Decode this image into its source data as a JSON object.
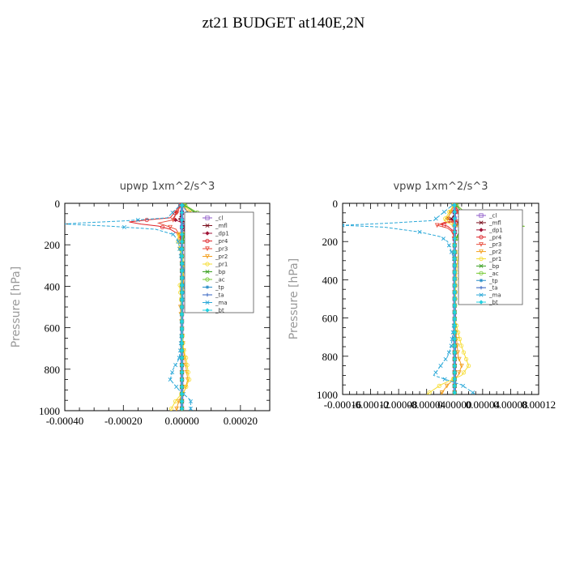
{
  "suptitle": "zt21  BUDGET at140E,2N",
  "colors": {
    "cl": "#8e59c9",
    "mfl": "#7a0f1e",
    "dp1": "#a01438",
    "pr4": "#e0252a",
    "pr3": "#e84a3a",
    "pr2": "#f4a020",
    "pr1": "#f6dc30",
    "bp": "#3aa020",
    "ac": "#74c830",
    "tp": "#2a8ec8",
    "ta": "#3060c0",
    "ma": "#2aa8d8",
    "bt": "#22d0e0"
  },
  "chart_data": [
    {
      "type": "line",
      "title": "upwp   1xm^2/s^3",
      "ylabel": "Pressure [hPa]",
      "xlabel": "",
      "xlim": [
        -0.0004,
        0.0003
      ],
      "ylim": [
        1000,
        0
      ],
      "xticks": [
        "-0.00040",
        "-0.00020",
        "0.00000",
        "0.00020"
      ],
      "xtick_values": [
        -0.0004,
        -0.0002,
        0,
        0.0002
      ],
      "yticks": [
        "0",
        "200",
        "400",
        "600",
        "800",
        "1000"
      ],
      "legend": [
        "_cl",
        "_mfl",
        "_dp1",
        "_pr4",
        "_pr3",
        "_pr2",
        "_pr1",
        "_bp",
        "_ac",
        "_tp",
        "_ta",
        "_ma",
        "_bt"
      ],
      "legend_position": "upper-right",
      "series": [
        {
          "key": "cl",
          "p": [
            0,
            100,
            200,
            400,
            600,
            800,
            1000
          ],
          "x": [
            0,
            0,
            0,
            0,
            0,
            0,
            0
          ]
        },
        {
          "key": "mfl",
          "p": [
            0,
            50,
            75,
            100,
            150,
            200,
            400,
            600,
            800,
            1000
          ],
          "x": [
            0,
            0,
            -1e-05,
            2e-05,
            0,
            0,
            0,
            0,
            0,
            0
          ]
        },
        {
          "key": "dp1",
          "p": [
            0,
            75,
            100,
            150,
            200,
            400,
            600,
            800,
            1000
          ],
          "x": [
            0,
            -3e-05,
            1e-05,
            -5e-06,
            0,
            0,
            0,
            0,
            0
          ]
        },
        {
          "key": "pr4",
          "p": [
            0,
            70,
            80,
            90,
            100,
            110,
            125,
            150,
            175,
            200,
            300,
            600,
            800,
            1000
          ],
          "x": [
            0,
            -4e-05,
            -0.00012,
            -0.00018,
            -0.00014,
            -8e-05,
            -4e-05,
            -1e-05,
            0,
            0,
            0,
            0,
            0,
            0
          ]
        },
        {
          "key": "pr3",
          "p": [
            0,
            80,
            95,
            110,
            125,
            150,
            200,
            600,
            1000
          ],
          "x": [
            0,
            -3e-05,
            -8e-05,
            -5e-05,
            -2e-05,
            -1e-05,
            0,
            0,
            0
          ]
        },
        {
          "key": "pr2",
          "p": [
            0,
            80,
            100,
            125,
            150,
            200,
            300,
            400,
            500,
            600,
            700,
            800,
            850,
            900,
            950,
            1000
          ],
          "x": [
            0,
            4e-05,
            7e-05,
            3e-05,
            -1e-05,
            -1e-05,
            5e-06,
            5e-06,
            -5e-06,
            0,
            5e-06,
            1.5e-05,
            2e-05,
            1e-05,
            -1e-05,
            -2e-05
          ]
        },
        {
          "key": "pr1",
          "p": [
            0,
            80,
            100,
            125,
            150,
            175,
            200,
            250,
            300,
            350,
            400,
            500,
            600,
            700,
            750,
            800,
            850,
            900,
            950,
            1000
          ],
          "x": [
            0,
            6e-05,
            9e-05,
            4e-05,
            -1e-05,
            -1.5e-05,
            -1e-05,
            0,
            8e-06,
            2e-06,
            -8e-06,
            0,
            0,
            5e-06,
            1.5e-05,
            2e-05,
            2.5e-05,
            1e-05,
            -2e-05,
            -4e-05
          ]
        },
        {
          "key": "bp",
          "p": [
            0,
            80,
            95,
            110,
            125,
            150,
            200,
            600,
            1000
          ],
          "x": [
            0,
            8e-05,
            0.00012,
            6e-05,
            2e-05,
            1e-05,
            0,
            0,
            0
          ]
        },
        {
          "key": "ac",
          "p": [
            0,
            85,
            100,
            115,
            135,
            160,
            200,
            600,
            1000
          ],
          "x": [
            0,
            0.0001,
            0.00014,
            7e-05,
            2e-05,
            5e-06,
            0,
            0,
            0
          ]
        },
        {
          "key": "tp",
          "p": [
            0,
            80,
            95,
            110,
            125,
            150,
            175,
            200,
            300,
            400,
            500,
            600,
            700,
            750,
            800,
            850,
            900,
            950,
            1000
          ],
          "x": [
            0,
            3e-05,
            1e-05,
            0,
            0,
            0,
            0,
            0,
            0,
            0,
            0,
            0,
            0,
            0,
            0,
            0,
            0,
            0,
            0
          ]
        },
        {
          "key": "ta",
          "p": [
            0,
            100,
            200,
            400,
            600,
            800,
            1000
          ],
          "x": [
            0,
            0,
            0,
            0,
            0,
            0,
            0
          ]
        },
        {
          "key": "ma",
          "p": [
            0,
            70,
            85,
            95,
            100,
            110,
            125,
            150,
            175,
            200,
            250,
            300,
            350,
            400,
            500,
            600,
            700,
            750,
            800,
            850,
            900,
            950,
            1000
          ],
          "x": [
            0,
            -5e-05,
            -0.0002,
            -0.00035,
            -0.0004,
            -0.00025,
            -9e-05,
            -3e-05,
            -1.5e-05,
            -1e-05,
            -5e-06,
            5e-06,
            1e-05,
            8e-06,
            0,
            0,
            -5e-06,
            -1e-05,
            -3e-05,
            -4e-05,
            -1e-05,
            3e-05,
            3e-05
          ]
        },
        {
          "key": "bt",
          "p": [
            0,
            100,
            200,
            400,
            600,
            800,
            1000
          ],
          "x": [
            0,
            0,
            0,
            0,
            0,
            0,
            0
          ]
        }
      ]
    },
    {
      "type": "line",
      "title": "vpwp   1xm^2/s^3",
      "ylabel": "Pressure [hPa]",
      "xlabel": "",
      "xlim": [
        -0.00016,
        0.00012
      ],
      "ylim": [
        1000,
        0
      ],
      "xticks": [
        "-0.00016",
        "-0.00012",
        "-0.00008",
        "-0.00004",
        "0.00000",
        "0.00004",
        "0.00008",
        "0.00012"
      ],
      "xtick_values": [
        -0.00016,
        -0.00012,
        -8e-05,
        -4e-05,
        0,
        4e-05,
        8e-05,
        0.00012
      ],
      "yticks": [
        "0",
        "200",
        "400",
        "600",
        "800",
        "1000"
      ],
      "legend": [
        "_cl",
        "_mfl",
        "_dp1",
        "_pr4",
        "_pr3",
        "_pr2",
        "_pr1",
        "_bp",
        "_ac",
        "_tp",
        "_ta",
        "_ma",
        "_bt"
      ],
      "legend_position": "upper-right",
      "series": [
        {
          "key": "cl",
          "p": [
            0,
            100,
            200,
            400,
            600,
            800,
            1000
          ],
          "x": [
            0,
            0,
            0,
            0,
            0,
            0,
            0
          ]
        },
        {
          "key": "mfl",
          "p": [
            0,
            60,
            80,
            100,
            120,
            150,
            200,
            600,
            1000
          ],
          "x": [
            0,
            0,
            -5e-06,
            8e-06,
            0,
            0,
            0,
            0,
            0
          ]
        },
        {
          "key": "dp1",
          "p": [
            0,
            80,
            100,
            120,
            150,
            200,
            600,
            1000
          ],
          "x": [
            0,
            -1e-05,
            5e-06,
            0,
            0,
            0,
            0,
            0
          ]
        },
        {
          "key": "pr4",
          "p": [
            0,
            80,
            90,
            100,
            110,
            120,
            135,
            150,
            200,
            600,
            1000
          ],
          "x": [
            0,
            1e-05,
            1.5e-05,
            -1e-05,
            -2e-05,
            -1e-05,
            -5e-06,
            0,
            0,
            0,
            0
          ]
        },
        {
          "key": "pr3",
          "p": [
            0,
            85,
            100,
            115,
            130,
            150,
            200,
            600,
            1000
          ],
          "x": [
            0,
            8e-06,
            -1.5e-05,
            -2.5e-05,
            -1e-05,
            -3e-06,
            0,
            0,
            0
          ]
        },
        {
          "key": "pr2",
          "p": [
            0,
            80,
            100,
            120,
            140,
            160,
            200,
            300,
            600,
            800,
            850,
            900,
            950,
            1000
          ],
          "x": [
            0,
            -1e-05,
            -5e-06,
            1e-05,
            1e-05,
            5e-06,
            0,
            0,
            0,
            5e-06,
            1e-05,
            5e-06,
            -1e-05,
            -2e-05
          ]
        },
        {
          "key": "pr1",
          "p": [
            0,
            90,
            110,
            130,
            150,
            175,
            200,
            250,
            300,
            400,
            600,
            750,
            800,
            850,
            900,
            950,
            1000
          ],
          "x": [
            0,
            -1.5e-05,
            -5e-06,
            1e-05,
            1.5e-05,
            1.2e-05,
            1e-05,
            6e-06,
            4e-06,
            2e-06,
            0,
            1e-05,
            1.5e-05,
            2e-05,
            1e-05,
            -2e-05,
            -4e-05
          ]
        },
        {
          "key": "bp",
          "p": [
            0,
            90,
            105,
            115,
            125,
            140,
            160,
            200,
            600,
            1000
          ],
          "x": [
            0,
            2e-05,
            6e-05,
            9e-05,
            5e-05,
            2e-05,
            5e-06,
            0,
            0,
            0
          ]
        },
        {
          "key": "ac",
          "p": [
            0,
            95,
            110,
            120,
            130,
            145,
            170,
            200,
            600,
            1000
          ],
          "x": [
            0,
            3e-05,
            8e-05,
            0.0001,
            6e-05,
            2e-05,
            5e-06,
            0,
            0,
            0
          ]
        },
        {
          "key": "tp",
          "p": [
            0,
            100,
            120,
            150,
            200,
            600,
            1000
          ],
          "x": [
            0,
            0,
            0,
            0,
            0,
            0,
            0
          ]
        },
        {
          "key": "ta",
          "p": [
            0,
            100,
            200,
            400,
            600,
            800,
            1000
          ],
          "x": [
            0,
            0,
            0,
            0,
            0,
            0,
            0
          ]
        },
        {
          "key": "ma",
          "p": [
            0,
            90,
            105,
            115,
            125,
            150,
            175,
            200,
            250,
            300,
            350,
            400,
            600,
            750,
            800,
            850,
            900,
            950,
            1000
          ],
          "x": [
            0,
            -3e-05,
            -0.0001,
            -0.00016,
            -0.0001,
            -5e-05,
            -2e-05,
            -1e-05,
            -5e-06,
            0,
            0,
            0,
            0,
            -5e-06,
            -1e-05,
            -2e-05,
            -3e-05,
            1e-05,
            3e-05
          ]
        },
        {
          "key": "bt",
          "p": [
            0,
            100,
            200,
            400,
            600,
            800,
            1000
          ],
          "x": [
            0,
            0,
            0,
            0,
            0,
            0,
            0
          ]
        }
      ]
    }
  ]
}
